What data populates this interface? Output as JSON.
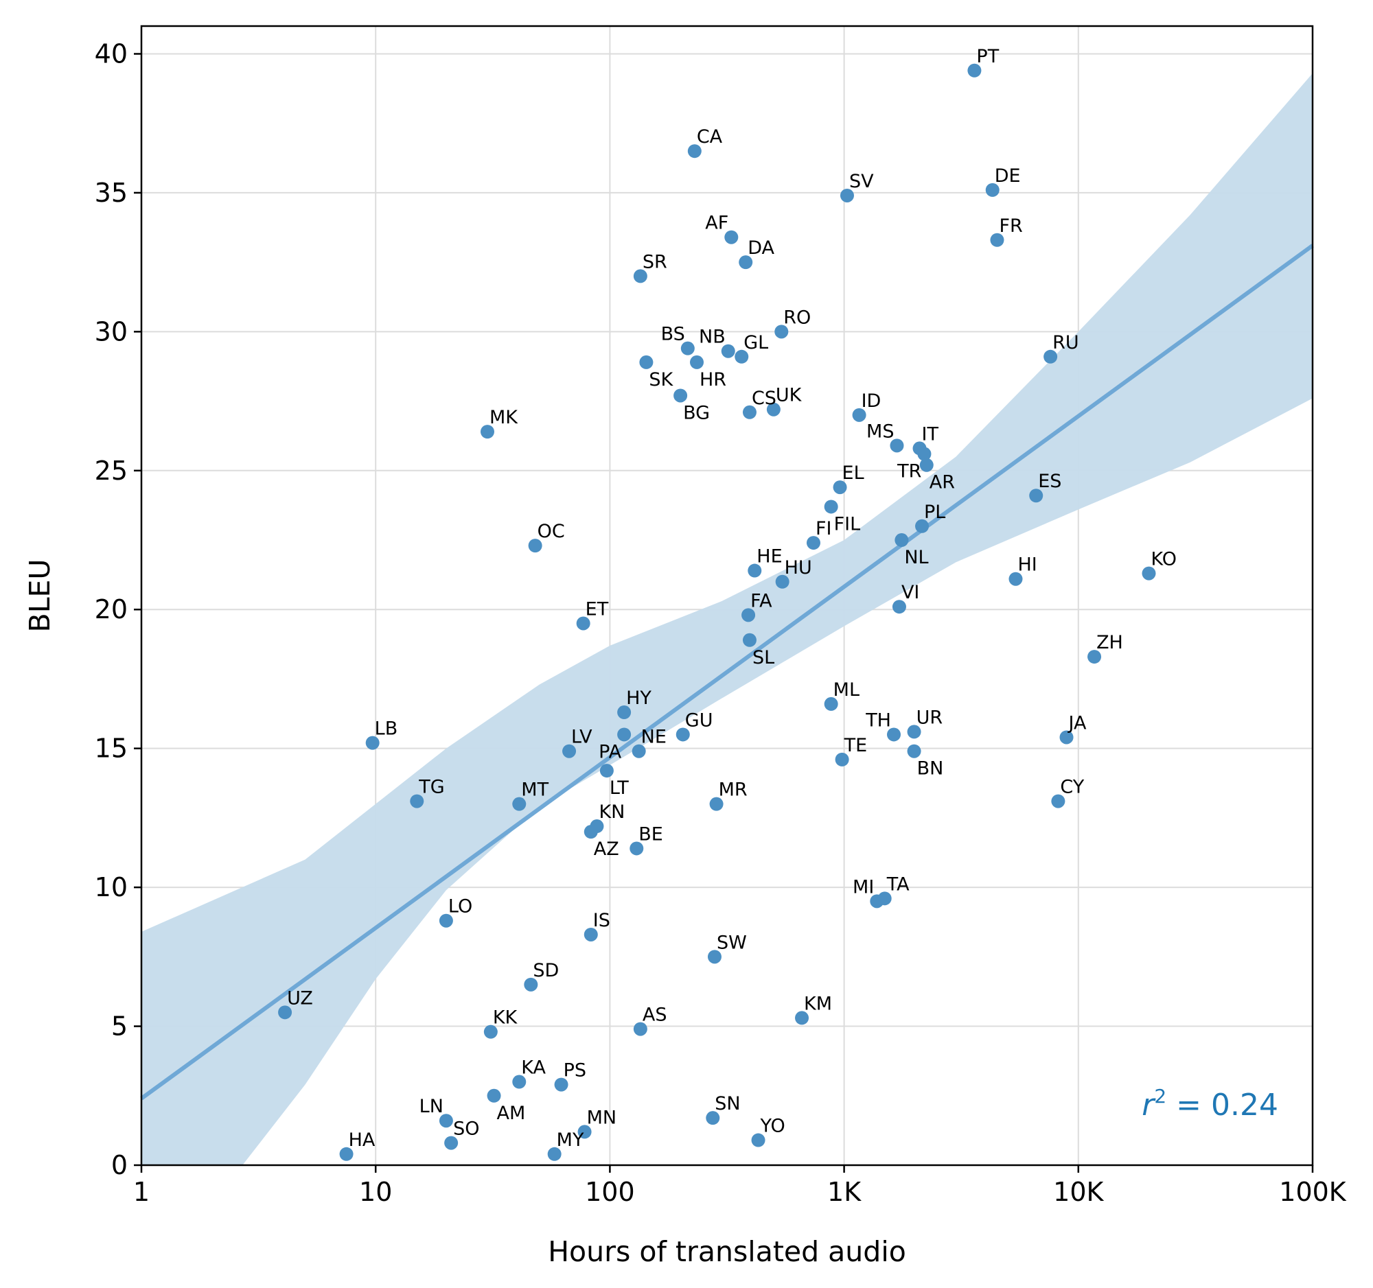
{
  "chart_data": {
    "type": "scatter",
    "xlabel": "Hours of translated audio",
    "ylabel": "BLEU",
    "xscale": "log",
    "xlim": [
      1,
      100000
    ],
    "ylim": [
      0,
      41
    ],
    "x_ticks": [
      1,
      10,
      100,
      1000,
      10000,
      100000
    ],
    "x_tick_labels": [
      "1",
      "10",
      "100",
      "1K",
      "10K",
      "100K"
    ],
    "y_ticks": [
      0,
      5,
      10,
      15,
      20,
      25,
      30,
      35,
      40
    ],
    "y_tick_labels": [
      "0",
      "5",
      "10",
      "15",
      "20",
      "25",
      "30",
      "35",
      "40"
    ],
    "grid": true,
    "regression": {
      "line": [
        [
          1,
          2.4
        ],
        [
          100000,
          33.1
        ]
      ],
      "ci_upper": [
        [
          1,
          8.4
        ],
        [
          5,
          11.0
        ],
        [
          20,
          15.0
        ],
        [
          50,
          17.3
        ],
        [
          100,
          18.7
        ],
        [
          300,
          20.3
        ],
        [
          1000,
          22.5
        ],
        [
          3000,
          25.5
        ],
        [
          10000,
          30.0
        ],
        [
          30000,
          34.2
        ],
        [
          100000,
          39.3
        ]
      ],
      "ci_lower": [
        [
          2.7,
          0
        ],
        [
          5,
          2.9
        ],
        [
          10,
          6.7
        ],
        [
          20,
          9.9
        ],
        [
          50,
          12.9
        ],
        [
          100,
          14.4
        ],
        [
          300,
          16.8
        ],
        [
          1000,
          19.4
        ],
        [
          3000,
          21.7
        ],
        [
          10000,
          23.6
        ],
        [
          30000,
          25.3
        ],
        [
          100000,
          27.6
        ]
      ]
    },
    "annotation": {
      "prefix": "r",
      "sup": "2",
      "suffix": " = 0.24"
    },
    "points": [
      {
        "label": "PT",
        "x": 3600,
        "y": 39.4,
        "pos": "ne"
      },
      {
        "label": "CA",
        "x": 230,
        "y": 36.5,
        "pos": "ne"
      },
      {
        "label": "SV",
        "x": 1030,
        "y": 34.9,
        "pos": "ne"
      },
      {
        "label": "DE",
        "x": 4300,
        "y": 35.1,
        "pos": "ne"
      },
      {
        "label": "AF",
        "x": 330,
        "y": 33.4,
        "pos": "nw"
      },
      {
        "label": "FR",
        "x": 4500,
        "y": 33.3,
        "pos": "ne"
      },
      {
        "label": "DA",
        "x": 380,
        "y": 32.5,
        "pos": "ne"
      },
      {
        "label": "SR",
        "x": 135,
        "y": 32.0,
        "pos": "ne"
      },
      {
        "label": "RO",
        "x": 540,
        "y": 30.0,
        "pos": "ne"
      },
      {
        "label": "BS",
        "x": 215,
        "y": 29.4,
        "pos": "nw"
      },
      {
        "label": "NB",
        "x": 320,
        "y": 29.3,
        "pos": "nw"
      },
      {
        "label": "GL",
        "x": 365,
        "y": 29.1,
        "pos": "ne"
      },
      {
        "label": "RU",
        "x": 7600,
        "y": 29.1,
        "pos": "ne"
      },
      {
        "label": "SK",
        "x": 143,
        "y": 28.9,
        "pos": "se"
      },
      {
        "label": "HR",
        "x": 235,
        "y": 28.9,
        "pos": "se"
      },
      {
        "label": "BG",
        "x": 200,
        "y": 27.7,
        "pos": "se"
      },
      {
        "label": "CS",
        "x": 395,
        "y": 27.1,
        "pos": "ne"
      },
      {
        "label": "UK",
        "x": 500,
        "y": 27.2,
        "pos": "ne"
      },
      {
        "label": "ID",
        "x": 1160,
        "y": 27.0,
        "pos": "ne"
      },
      {
        "label": "MK",
        "x": 30,
        "y": 26.4,
        "pos": "ne"
      },
      {
        "label": "MS",
        "x": 1680,
        "y": 25.9,
        "pos": "nw"
      },
      {
        "label": "IT",
        "x": 2100,
        "y": 25.8,
        "pos": "ne"
      },
      {
        "label": "TR",
        "x": 2200,
        "y": 25.6,
        "pos": "sw"
      },
      {
        "label": "AR",
        "x": 2250,
        "y": 25.2,
        "pos": "se"
      },
      {
        "label": "EL",
        "x": 960,
        "y": 24.4,
        "pos": "ne"
      },
      {
        "label": "ES",
        "x": 6600,
        "y": 24.1,
        "pos": "ne"
      },
      {
        "label": "FIL",
        "x": 880,
        "y": 23.7,
        "pos": "se"
      },
      {
        "label": "PL",
        "x": 2150,
        "y": 23.0,
        "pos": "ne"
      },
      {
        "label": "FI",
        "x": 740,
        "y": 22.4,
        "pos": "ne"
      },
      {
        "label": "NL",
        "x": 1760,
        "y": 22.5,
        "pos": "se"
      },
      {
        "label": "OC",
        "x": 48,
        "y": 22.3,
        "pos": "ne"
      },
      {
        "label": "HE",
        "x": 415,
        "y": 21.4,
        "pos": "ne"
      },
      {
        "label": "KO",
        "x": 20000,
        "y": 21.3,
        "pos": "ne"
      },
      {
        "label": "HI",
        "x": 5400,
        "y": 21.1,
        "pos": "ne"
      },
      {
        "label": "HU",
        "x": 545,
        "y": 21.0,
        "pos": "ne"
      },
      {
        "label": "VI",
        "x": 1720,
        "y": 20.1,
        "pos": "ne"
      },
      {
        "label": "FA",
        "x": 390,
        "y": 19.8,
        "pos": "ne"
      },
      {
        "label": "ET",
        "x": 77,
        "y": 19.5,
        "pos": "ne"
      },
      {
        "label": "SL",
        "x": 395,
        "y": 18.9,
        "pos": "se"
      },
      {
        "label": "ZH",
        "x": 11700,
        "y": 18.3,
        "pos": "ne"
      },
      {
        "label": "ML",
        "x": 880,
        "y": 16.6,
        "pos": "ne"
      },
      {
        "label": "HY",
        "x": 115,
        "y": 16.3,
        "pos": "ne"
      },
      {
        "label": "UR",
        "x": 1990,
        "y": 15.6,
        "pos": "ne"
      },
      {
        "label": "GU",
        "x": 205,
        "y": 15.5,
        "pos": "ne"
      },
      {
        "label": "TH",
        "x": 1630,
        "y": 15.5,
        "pos": "nw"
      },
      {
        "label": "JA",
        "x": 8900,
        "y": 15.4,
        "pos": "ne"
      },
      {
        "label": "PA",
        "x": 115,
        "y": 15.5,
        "pos": "sw"
      },
      {
        "label": "NE",
        "x": 133,
        "y": 14.9,
        "pos": "ne"
      },
      {
        "label": "LB",
        "x": 9.7,
        "y": 15.2,
        "pos": "ne"
      },
      {
        "label": "LV",
        "x": 67,
        "y": 14.9,
        "pos": "ne"
      },
      {
        "label": "BN",
        "x": 1990,
        "y": 14.9,
        "pos": "se"
      },
      {
        "label": "TE",
        "x": 980,
        "y": 14.6,
        "pos": "ne"
      },
      {
        "label": "LT",
        "x": 97,
        "y": 14.2,
        "pos": "se"
      },
      {
        "label": "TG",
        "x": 15,
        "y": 13.1,
        "pos": "ne"
      },
      {
        "label": "CY",
        "x": 8200,
        "y": 13.1,
        "pos": "ne"
      },
      {
        "label": "MR",
        "x": 285,
        "y": 13.0,
        "pos": "ne"
      },
      {
        "label": "MT",
        "x": 41,
        "y": 13.0,
        "pos": "ne"
      },
      {
        "label": "KN",
        "x": 88,
        "y": 12.2,
        "pos": "ne"
      },
      {
        "label": "AZ",
        "x": 83,
        "y": 12.0,
        "pos": "se"
      },
      {
        "label": "BE",
        "x": 130,
        "y": 11.4,
        "pos": "ne"
      },
      {
        "label": "MI",
        "x": 1380,
        "y": 9.5,
        "pos": "nw"
      },
      {
        "label": "TA",
        "x": 1490,
        "y": 9.6,
        "pos": "ne"
      },
      {
        "label": "LO",
        "x": 20,
        "y": 8.8,
        "pos": "ne"
      },
      {
        "label": "IS",
        "x": 83,
        "y": 8.3,
        "pos": "ne"
      },
      {
        "label": "SW",
        "x": 280,
        "y": 7.5,
        "pos": "ne"
      },
      {
        "label": "SD",
        "x": 46,
        "y": 6.5,
        "pos": "ne"
      },
      {
        "label": "UZ",
        "x": 4.1,
        "y": 5.5,
        "pos": "ne"
      },
      {
        "label": "KM",
        "x": 660,
        "y": 5.3,
        "pos": "ne"
      },
      {
        "label": "AS",
        "x": 135,
        "y": 4.9,
        "pos": "ne"
      },
      {
        "label": "KK",
        "x": 31,
        "y": 4.8,
        "pos": "ne"
      },
      {
        "label": "KA",
        "x": 41,
        "y": 3.0,
        "pos": "ne"
      },
      {
        "label": "PS",
        "x": 62,
        "y": 2.9,
        "pos": "ne"
      },
      {
        "label": "AM",
        "x": 32,
        "y": 2.5,
        "pos": "se"
      },
      {
        "label": "LN",
        "x": 20,
        "y": 1.6,
        "pos": "nw"
      },
      {
        "label": "SN",
        "x": 275,
        "y": 1.7,
        "pos": "ne"
      },
      {
        "label": "MN",
        "x": 78,
        "y": 1.2,
        "pos": "ne"
      },
      {
        "label": "YO",
        "x": 430,
        "y": 0.9,
        "pos": "ne"
      },
      {
        "label": "SO",
        "x": 21,
        "y": 0.8,
        "pos": "ne"
      },
      {
        "label": "HA",
        "x": 7.5,
        "y": 0.4,
        "pos": "ne"
      },
      {
        "label": "MY",
        "x": 58,
        "y": 0.4,
        "pos": "ne"
      }
    ],
    "colors": {
      "point": "#4b8fc3",
      "line": "#6fa8d6",
      "band": "#c5dbeb",
      "annotation": "#1f77b4",
      "axis": "#000000",
      "grid": "#dcdcdc"
    }
  }
}
